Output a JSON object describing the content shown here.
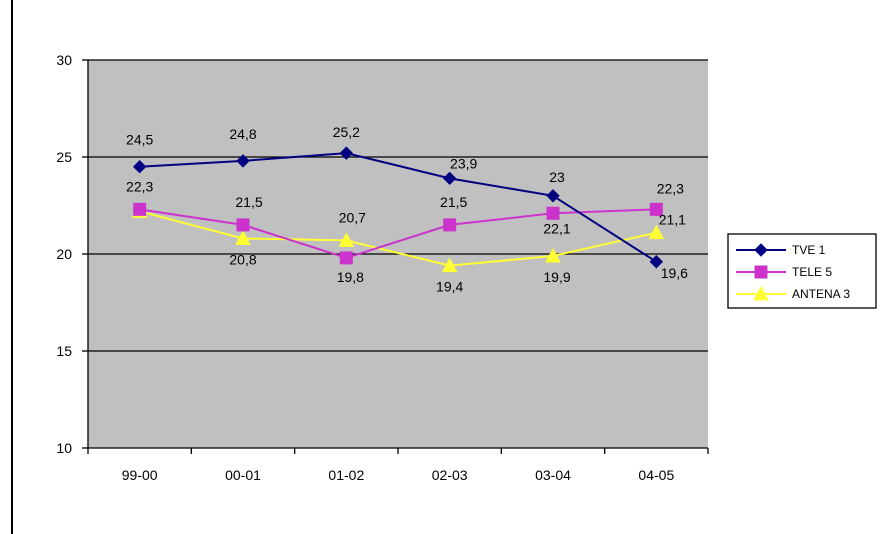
{
  "chart_data": {
    "type": "line",
    "categories": [
      "99-00",
      "00-01",
      "01-02",
      "02-03",
      "03-04",
      "04-05"
    ],
    "ylim": [
      10,
      30
    ],
    "yticks": [
      10,
      15,
      20,
      25,
      30
    ],
    "grid": "horizontal major lines at 20 and 25 and 15",
    "plot_background": "#c0c0c0",
    "legend_position": "right",
    "series": [
      {
        "name": "TVE 1",
        "values": [
          24.5,
          24.8,
          25.2,
          23.9,
          23,
          19.6
        ],
        "labels": [
          "24,5",
          "24,8",
          "25,2",
          "23,9",
          "23",
          "19,6"
        ],
        "color": "#000080",
        "marker": "diamond"
      },
      {
        "name": "TELE 5",
        "values": [
          22.3,
          21.5,
          19.8,
          21.5,
          22.1,
          22.3
        ],
        "labels": [
          "22,3",
          "21,5",
          "19,8",
          "21,5",
          "22,1",
          "22,3"
        ],
        "color": "#cc33cc",
        "marker": "square"
      },
      {
        "name": "ANTENA 3",
        "values": [
          22.2,
          20.8,
          20.7,
          19.4,
          19.9,
          21.1
        ],
        "labels": [
          "",
          "20,8",
          "20,7",
          "19,4",
          "19,9",
          "21,1"
        ],
        "color": "#ffff33",
        "marker": "triangle"
      }
    ]
  }
}
